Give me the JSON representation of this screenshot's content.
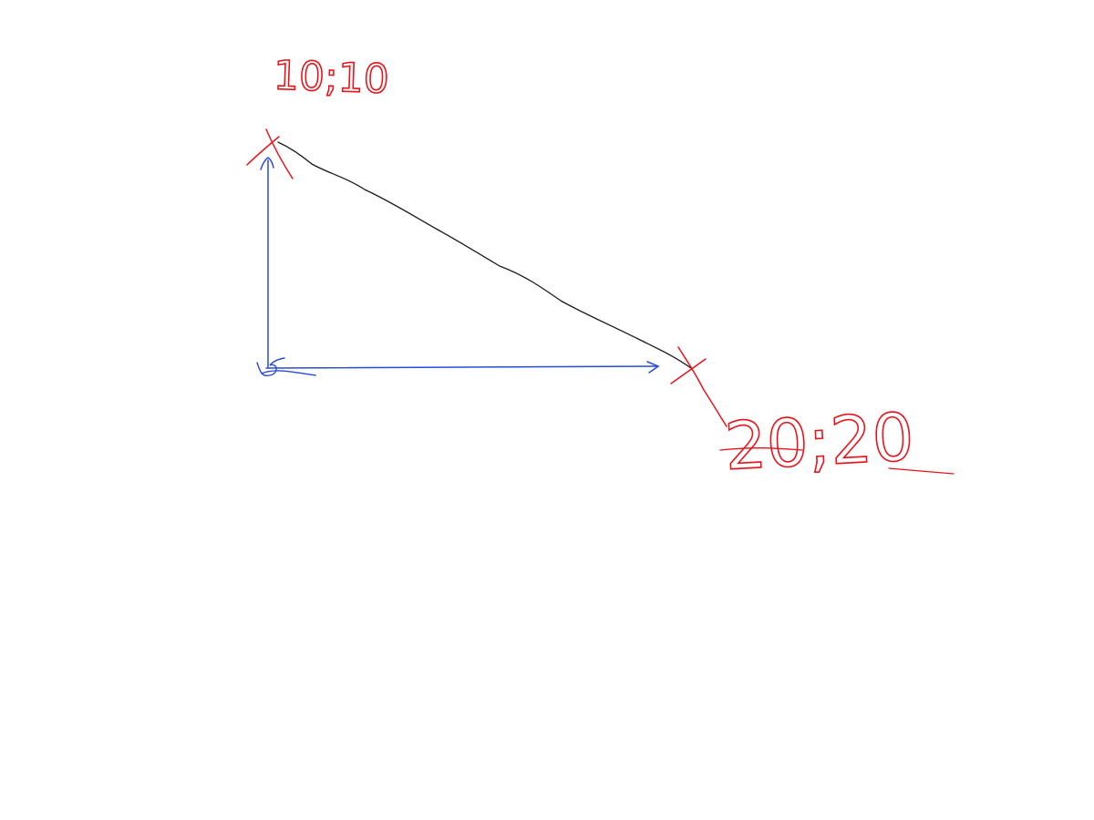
{
  "points": {
    "start": {
      "label": "10;10",
      "marker": "x-mark-icon"
    },
    "end": {
      "label": "20;20",
      "marker": "x-mark-icon"
    }
  },
  "colors": {
    "background": "#ffffff",
    "annotation": "#e8141c",
    "axes": "#2a4bd7",
    "segment": "#1a1a1a"
  },
  "icons": {
    "vertical_axis": "arrow-up-icon",
    "horizontal_axis": "arrow-right-icon"
  }
}
